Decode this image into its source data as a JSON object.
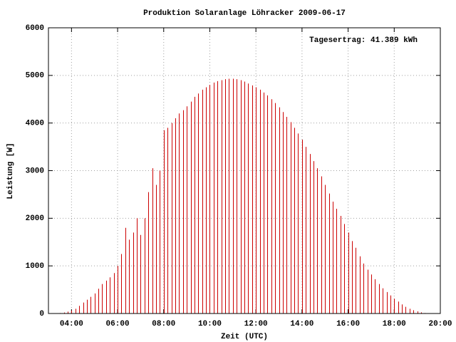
{
  "chart_data": {
    "type": "impulse",
    "title": "Produktion Solaranlage Löhracker 2009-06-17",
    "annotation": "Tagesertrag: 41.389 kWh",
    "xlabel": "Zeit (UTC)",
    "ylabel": "Leistung [W]",
    "color": "#cc0000",
    "grid": true,
    "xlim": [
      180,
      1200
    ],
    "xticks": [
      {
        "value": 240,
        "label": "04:00"
      },
      {
        "value": 360,
        "label": "06:00"
      },
      {
        "value": 480,
        "label": "08:00"
      },
      {
        "value": 600,
        "label": "10:00"
      },
      {
        "value": 720,
        "label": "12:00"
      },
      {
        "value": 840,
        "label": "14:00"
      },
      {
        "value": 960,
        "label": "16:00"
      },
      {
        "value": 1080,
        "label": "18:00"
      },
      {
        "value": 1200,
        "label": "20:00"
      }
    ],
    "ylim": [
      0,
      6000
    ],
    "yticks": [
      0,
      1000,
      2000,
      3000,
      4000,
      5000,
      6000
    ],
    "x": [
      210,
      220,
      230,
      240,
      250,
      260,
      270,
      280,
      290,
      300,
      310,
      320,
      330,
      340,
      350,
      360,
      370,
      380,
      390,
      400,
      410,
      420,
      430,
      440,
      450,
      460,
      470,
      480,
      490,
      500,
      510,
      520,
      530,
      540,
      550,
      560,
      570,
      580,
      590,
      600,
      610,
      620,
      630,
      640,
      650,
      660,
      670,
      680,
      690,
      700,
      710,
      720,
      730,
      740,
      750,
      760,
      770,
      780,
      790,
      800,
      810,
      820,
      830,
      840,
      850,
      860,
      870,
      880,
      890,
      900,
      910,
      920,
      930,
      940,
      950,
      960,
      970,
      980,
      990,
      1000,
      1010,
      1020,
      1030,
      1040,
      1050,
      1060,
      1070,
      1080,
      1090,
      1100,
      1110,
      1120,
      1130,
      1140,
      1150,
      1160,
      1170
    ],
    "values": [
      10,
      20,
      40,
      60,
      100,
      160,
      230,
      290,
      350,
      420,
      520,
      620,
      690,
      760,
      850,
      1000,
      1250,
      1800,
      1550,
      1700,
      2000,
      1650,
      2000,
      2550,
      3050,
      2700,
      3000,
      3850,
      3900,
      4000,
      4100,
      4200,
      4270,
      4350,
      4450,
      4550,
      4620,
      4700,
      4750,
      4800,
      4850,
      4880,
      4900,
      4920,
      4930,
      4930,
      4920,
      4900,
      4870,
      4830,
      4790,
      4750,
      4700,
      4640,
      4580,
      4500,
      4420,
      4330,
      4230,
      4130,
      4020,
      3900,
      3780,
      3650,
      3500,
      3350,
      3200,
      3050,
      2880,
      2700,
      2520,
      2350,
      2200,
      2050,
      1880,
      1700,
      1520,
      1380,
      1200,
      1050,
      920,
      820,
      720,
      620,
      530,
      450,
      380,
      310,
      250,
      190,
      140,
      100,
      70,
      45,
      25,
      10,
      5
    ]
  }
}
